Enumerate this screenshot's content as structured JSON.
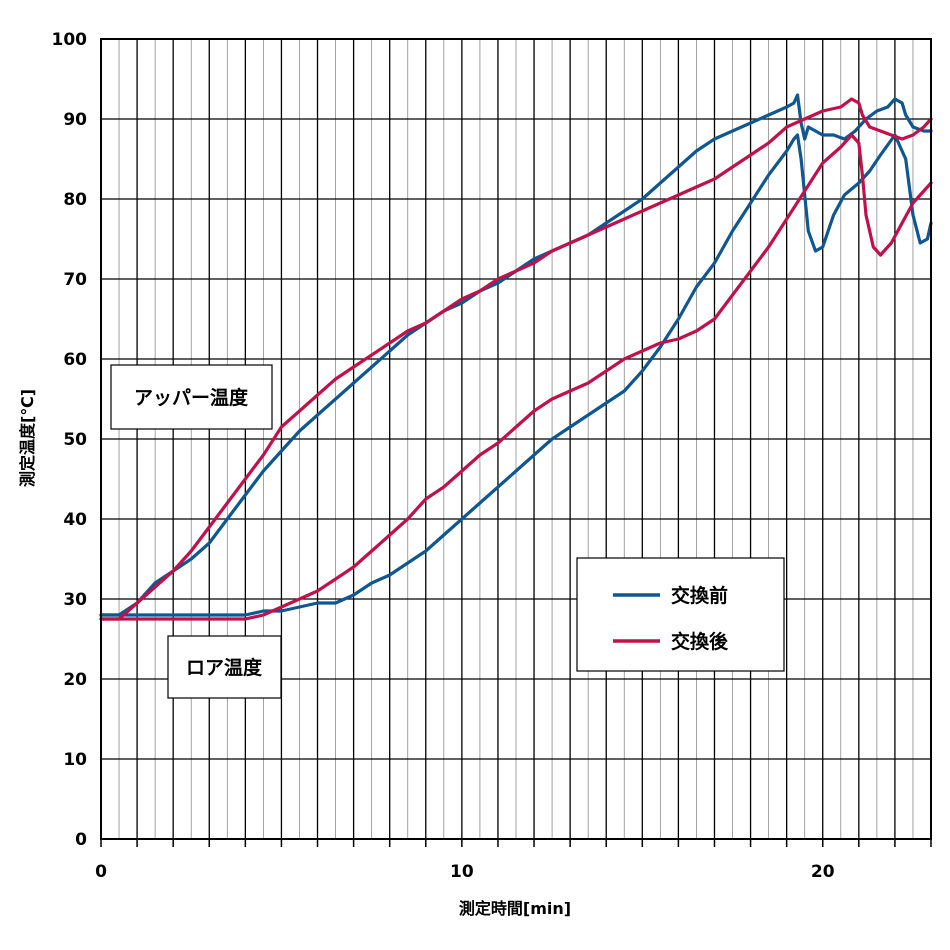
{
  "chart_data": {
    "type": "line",
    "xlabel": "測定時間[min]",
    "ylabel": "測定温度[℃]",
    "xlim": [
      0,
      23
    ],
    "ylim": [
      0,
      100
    ],
    "x_ticks": [
      0,
      10,
      20
    ],
    "y_ticks": [
      0,
      10,
      20,
      30,
      40,
      50,
      60,
      70,
      80,
      90,
      100
    ],
    "grid": true,
    "legend_position": "bottom-right",
    "annotations": [
      {
        "id": "upper",
        "text": "アッパー温度"
      },
      {
        "id": "lower",
        "text": "ロア温度"
      }
    ],
    "series": [
      {
        "name": "交換前",
        "color": "#0f5790",
        "lines": [
          {
            "id": "upper",
            "x": [
              0,
              0.5,
              1,
              1.5,
              2,
              2.5,
              3,
              3.5,
              4,
              4.5,
              5,
              5.5,
              6,
              6.5,
              7,
              7.5,
              8,
              8.5,
              9,
              9.5,
              10,
              10.5,
              11,
              11.5,
              12,
              12.5,
              13,
              13.5,
              14,
              14.5,
              15,
              15.5,
              16,
              16.5,
              17,
              17.5,
              18,
              18.5,
              19,
              19.2,
              19.3,
              19.4,
              19.5,
              19.6,
              19.8,
              20,
              20.3,
              20.6,
              20.9,
              21.2,
              21.5,
              21.8,
              22,
              22.2,
              22.3,
              22.5,
              22.8,
              23
            ],
            "y": [
              28.0,
              28.0,
              29.5,
              32.0,
              33.5,
              35.0,
              37.0,
              40.0,
              43.0,
              46.0,
              48.5,
              51.0,
              53.0,
              55.0,
              57.0,
              59.0,
              61.0,
              63.0,
              64.5,
              66.0,
              67.0,
              68.5,
              69.5,
              71.0,
              72.5,
              73.5,
              74.5,
              75.5,
              77.0,
              78.5,
              80.0,
              82.0,
              84.0,
              86.0,
              87.5,
              88.5,
              89.5,
              90.5,
              91.5,
              92.0,
              93.0,
              89.5,
              87.5,
              89.0,
              88.5,
              88.0,
              88.0,
              87.5,
              88.5,
              90.0,
              91.0,
              91.5,
              92.5,
              92.0,
              90.5,
              89.0,
              88.5,
              88.5
            ]
          },
          {
            "id": "lower",
            "x": [
              0,
              0.5,
              1,
              1.5,
              2,
              2.5,
              3,
              3.5,
              4,
              4.5,
              5,
              5.5,
              6,
              6.5,
              7,
              7.5,
              8,
              8.5,
              9,
              9.5,
              10,
              10.5,
              11,
              11.5,
              12,
              12.5,
              13,
              13.5,
              14,
              14.5,
              15,
              15.5,
              16,
              16.5,
              17,
              17.5,
              18,
              18.5,
              19,
              19.2,
              19.3,
              19.4,
              19.6,
              19.8,
              20,
              20.3,
              20.6,
              21,
              21.3,
              21.6,
              22,
              22.3,
              22.5,
              22.7,
              22.9,
              23
            ],
            "y": [
              28.0,
              28.0,
              28.0,
              28.0,
              28.0,
              28.0,
              28.0,
              28.0,
              28.0,
              28.5,
              28.5,
              29.0,
              29.5,
              29.5,
              30.5,
              32.0,
              33.0,
              34.5,
              36.0,
              38.0,
              40.0,
              42.0,
              44.0,
              46.0,
              48.0,
              50.0,
              51.5,
              53.0,
              54.5,
              56.0,
              58.5,
              61.5,
              65.0,
              69.0,
              72.0,
              76.0,
              79.5,
              83.0,
              86.0,
              87.5,
              88.0,
              85.0,
              76.0,
              73.5,
              74.0,
              78.0,
              80.5,
              82.0,
              83.5,
              85.5,
              88.0,
              85.0,
              78.0,
              74.5,
              75.0,
              77.0
            ]
          }
        ]
      },
      {
        "name": "交換後",
        "color": "#c0114a",
        "lines": [
          {
            "id": "upper",
            "x": [
              0,
              0.5,
              1,
              1.5,
              2,
              2.5,
              3,
              3.5,
              4,
              4.5,
              5,
              5.5,
              6,
              6.5,
              7,
              7.5,
              8,
              8.5,
              9,
              9.5,
              10,
              10.5,
              11,
              11.5,
              12,
              12.5,
              13,
              13.5,
              14,
              14.5,
              15,
              15.5,
              16,
              16.5,
              17,
              17.5,
              18,
              18.5,
              19,
              19.5,
              20,
              20.5,
              20.8,
              21,
              21.1,
              21.3,
              21.6,
              21.9,
              22.2,
              22.5,
              22.8,
              23
            ],
            "y": [
              27.5,
              27.5,
              29.5,
              31.5,
              33.5,
              36.0,
              39.0,
              42.0,
              45.0,
              48.0,
              51.5,
              53.5,
              55.5,
              57.5,
              59.0,
              60.5,
              62.0,
              63.5,
              64.5,
              66.0,
              67.5,
              68.5,
              70.0,
              71.0,
              72.0,
              73.5,
              74.5,
              75.5,
              76.5,
              77.5,
              78.5,
              79.5,
              80.5,
              81.5,
              82.5,
              84.0,
              85.5,
              87.0,
              89.0,
              90.0,
              91.0,
              91.5,
              92.5,
              92.0,
              90.5,
              89.0,
              88.5,
              88.0,
              87.5,
              88.0,
              89.0,
              90.0
            ]
          },
          {
            "id": "lower",
            "x": [
              0,
              0.5,
              1,
              1.5,
              2,
              2.5,
              3,
              3.5,
              4,
              4.5,
              5,
              5.5,
              6,
              6.5,
              7,
              7.5,
              8,
              8.5,
              9,
              9.5,
              10,
              10.5,
              11,
              11.5,
              12,
              12.5,
              13,
              13.5,
              14,
              14.5,
              15,
              15.5,
              16,
              16.5,
              17,
              17.5,
              18,
              18.5,
              19,
              19.5,
              20,
              20.5,
              20.8,
              21,
              21.1,
              21.2,
              21.4,
              21.6,
              21.9,
              22.2,
              22.5,
              22.8,
              23
            ],
            "y": [
              27.5,
              27.5,
              27.5,
              27.5,
              27.5,
              27.5,
              27.5,
              27.5,
              27.5,
              28.0,
              29.0,
              30.0,
              31.0,
              32.5,
              34.0,
              36.0,
              38.0,
              40.0,
              42.5,
              44.0,
              46.0,
              48.0,
              49.5,
              51.5,
              53.5,
              55.0,
              56.0,
              57.0,
              58.5,
              60.0,
              61.0,
              62.0,
              62.5,
              63.5,
              65.0,
              68.0,
              71.0,
              74.0,
              77.5,
              81.0,
              84.5,
              86.5,
              88.0,
              87.0,
              83.0,
              78.0,
              74.0,
              73.0,
              74.5,
              77.0,
              79.5,
              81.0,
              82.0
            ]
          }
        ]
      }
    ]
  }
}
